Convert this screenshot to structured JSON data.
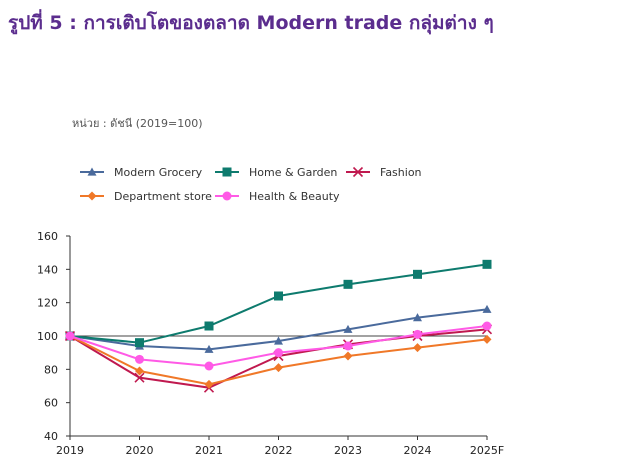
{
  "title": "รูปที่ 5 : การเติบโตของตลาด Modern trade กลุ่มต่าง ๆ",
  "unit_note": "หน่วย : ดัชนี (2019=100)",
  "chart_data": {
    "type": "line",
    "title": "",
    "xlabel": "",
    "ylabel": "",
    "categories": [
      "2019",
      "2020",
      "2021",
      "2022",
      "2023",
      "2024",
      "2025F"
    ],
    "ylim": [
      40,
      160
    ],
    "yticks": [
      40,
      60,
      80,
      100,
      120,
      140,
      160
    ],
    "grid": false,
    "baseline_value": 100,
    "legend_position": "top-left",
    "series": [
      {
        "name": "Modern Grocery",
        "color": "#4a6a9c",
        "marker": "triangle",
        "values": [
          100,
          94,
          92,
          97,
          104,
          111,
          116
        ]
      },
      {
        "name": "Home & Garden",
        "color": "#0e7b6e",
        "marker": "square",
        "values": [
          100,
          96,
          106,
          124,
          131,
          137,
          143
        ]
      },
      {
        "name": "Fashion",
        "color": "#c0194f",
        "marker": "x",
        "values": [
          100,
          75,
          69,
          88,
          95,
          100,
          104
        ]
      },
      {
        "name": "Department store",
        "color": "#f07828",
        "marker": "diamond",
        "values": [
          100,
          79,
          71,
          81,
          88,
          93,
          98
        ]
      },
      {
        "name": "Health & Beauty",
        "color": "#ff5ae6",
        "marker": "circle",
        "values": [
          100,
          86,
          82,
          90,
          94,
          101,
          106
        ]
      }
    ]
  }
}
